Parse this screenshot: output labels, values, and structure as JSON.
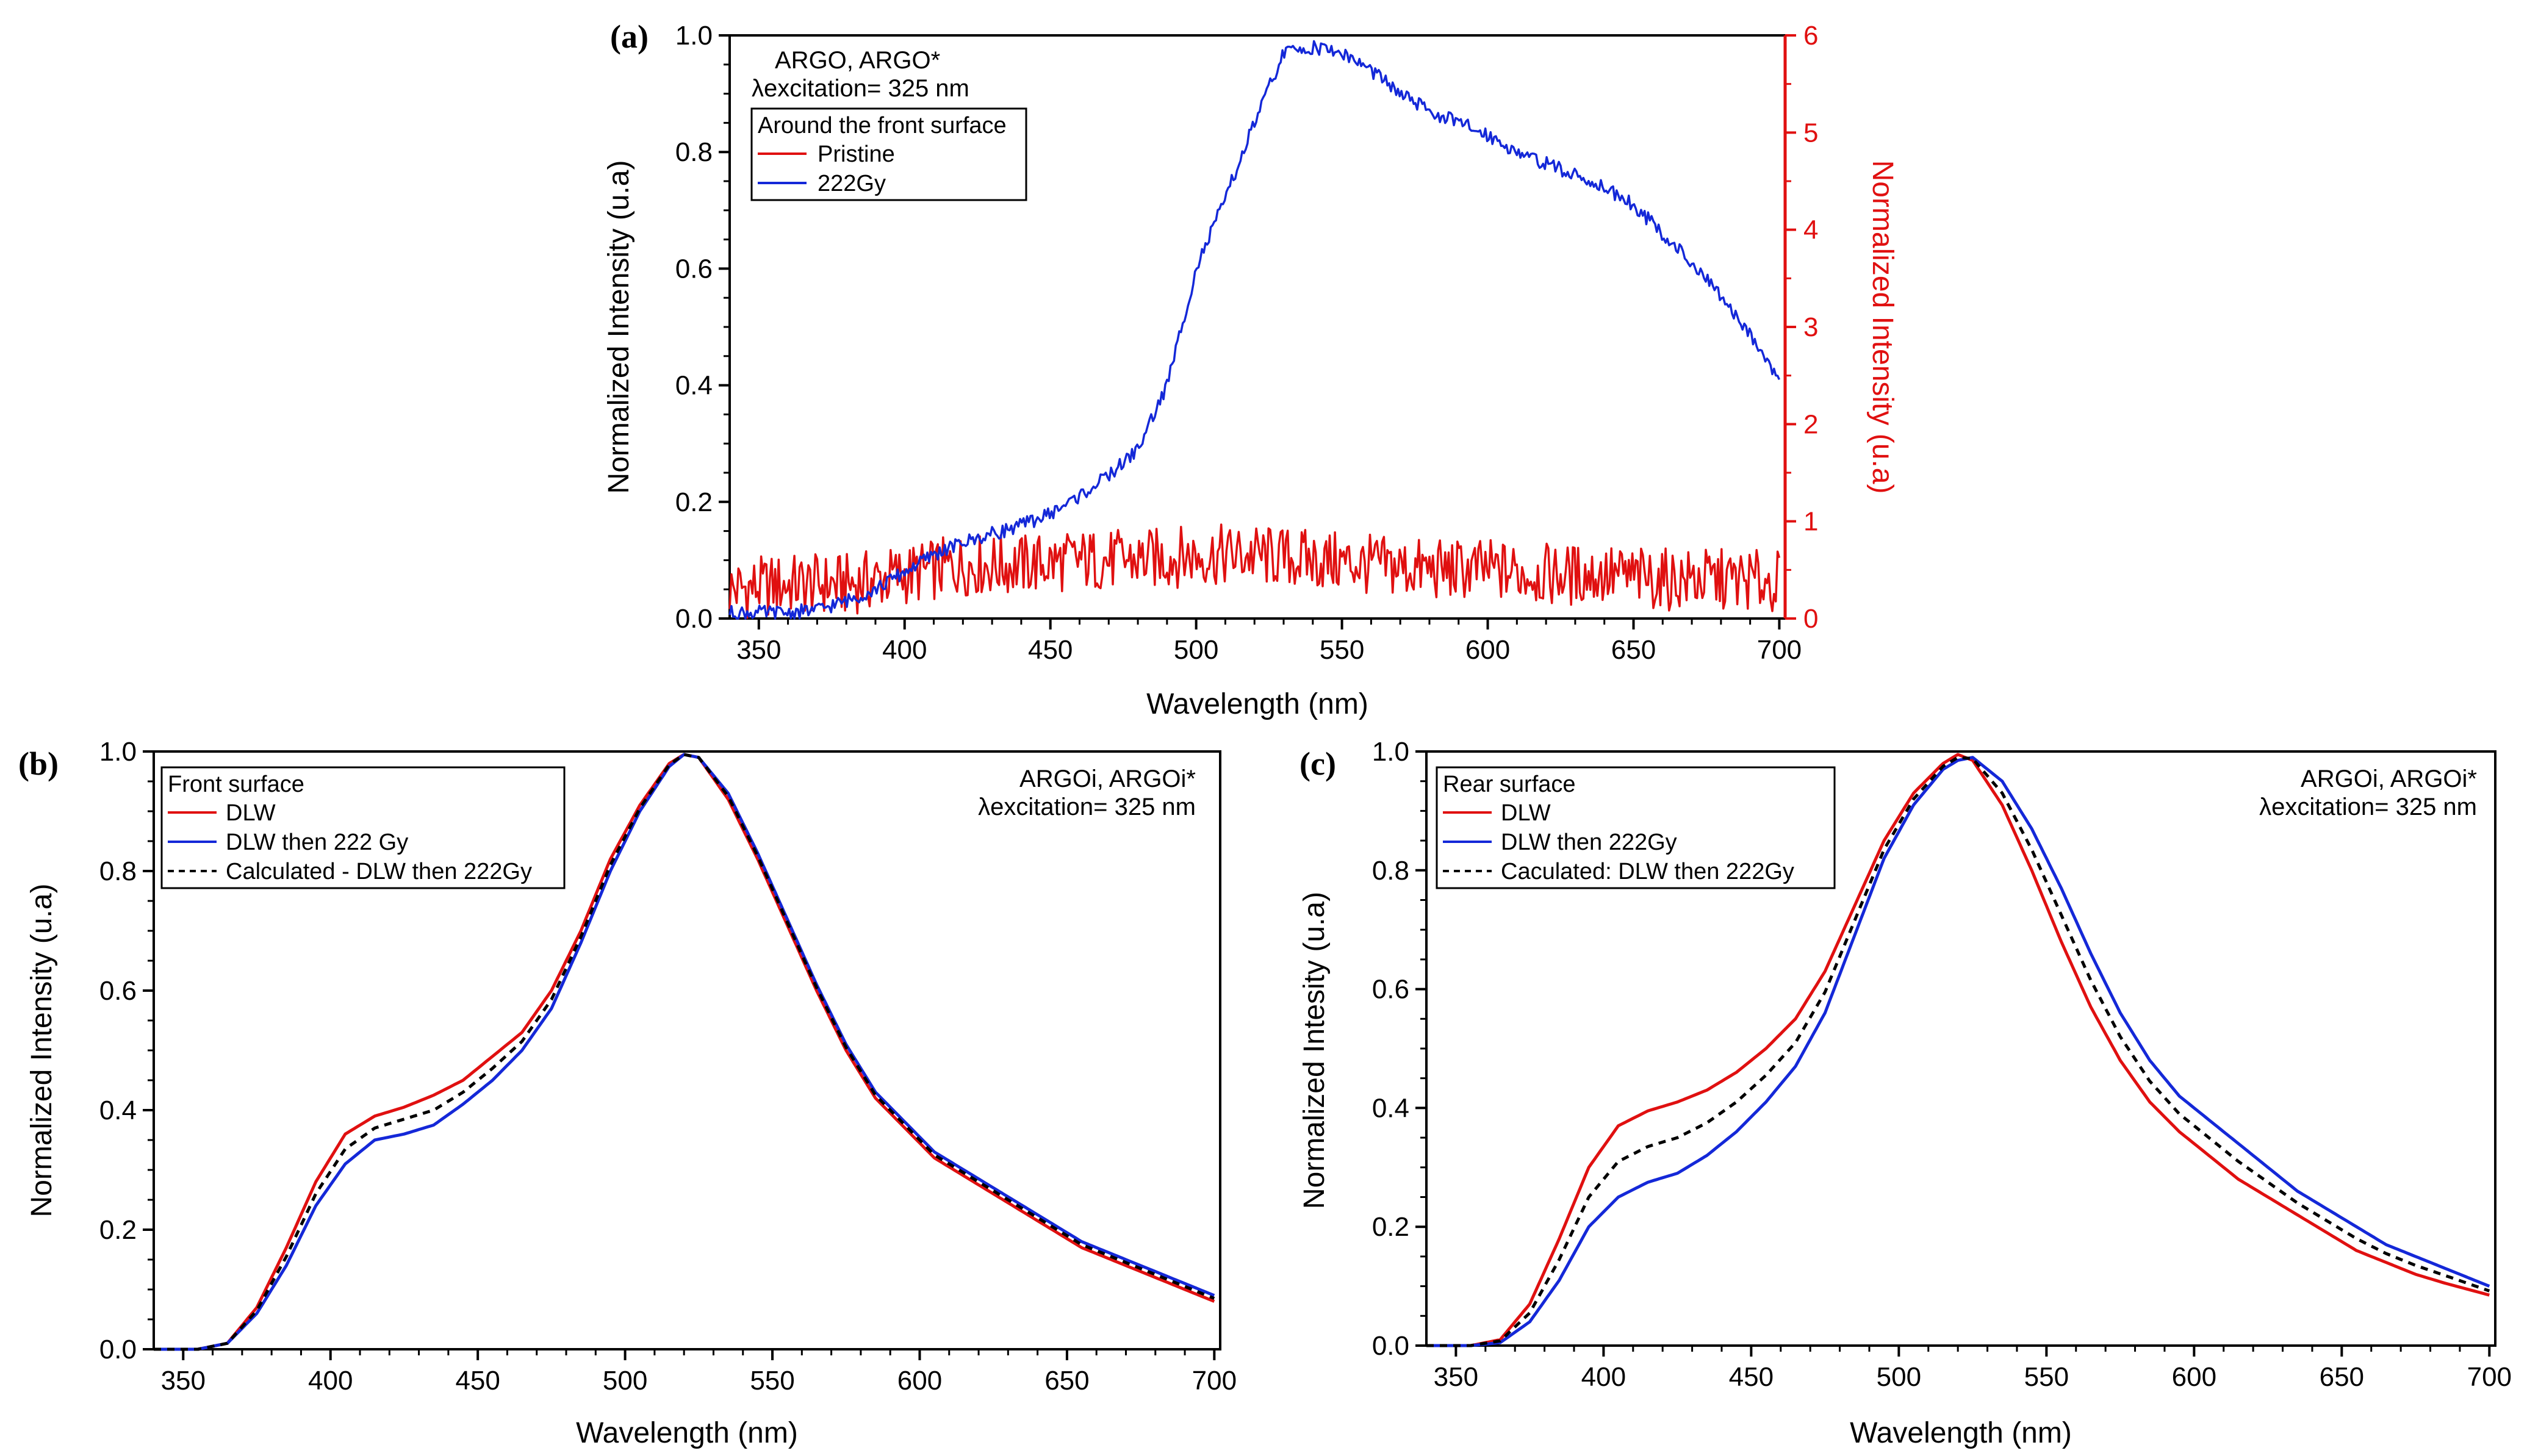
{
  "colors": {
    "red": "#e01010",
    "blue": "#1428d8",
    "black": "#000000"
  },
  "chart_data": [
    {
      "id": "a",
      "type": "line",
      "panel_label": "(a)",
      "xlabel": "Wavelength (nm)",
      "ylabel": "Normalized Intensity (u.a)",
      "y2label": "Normalized Intensity (u.a)",
      "xlim": [
        340,
        702
      ],
      "ylim": [
        0,
        1.0
      ],
      "y2lim": [
        0,
        6
      ],
      "xticks": [
        350,
        400,
        450,
        500,
        550,
        600,
        650,
        700
      ],
      "xtick_labels": [
        "350",
        "400",
        "450",
        "500",
        "550",
        "600",
        "650",
        "700"
      ],
      "yticks": [
        0,
        0.2,
        0.4,
        0.6,
        0.8,
        1.0
      ],
      "ytick_labels": [
        "0.0",
        "0.2",
        "0.4",
        "0.6",
        "0.8",
        "1.0"
      ],
      "y2ticks": [
        0,
        1,
        2,
        3,
        4,
        5,
        6
      ],
      "y2tick_labels": [
        "0",
        "1",
        "2",
        "3",
        "4",
        "5",
        "6"
      ],
      "annotation": [
        "ARGO, ARGO*",
        "λexcitation= 325 nm"
      ],
      "legend_title": "Around the front surface",
      "legend_position": "top-left",
      "series": [
        {
          "name": "Pristine",
          "color": "red",
          "axis": "right",
          "x": [
            340,
            360,
            380,
            400,
            420,
            440,
            460,
            480,
            500,
            520,
            540,
            560,
            580,
            600,
            620,
            640,
            660,
            680,
            700
          ],
          "y": [
            0.3,
            0.35,
            0.35,
            0.45,
            0.55,
            0.55,
            0.6,
            0.6,
            0.65,
            0.65,
            0.6,
            0.55,
            0.5,
            0.5,
            0.45,
            0.45,
            0.4,
            0.4,
            0.38
          ]
        },
        {
          "name": "222Gy",
          "color": "blue",
          "axis": "left",
          "x": [
            340,
            360,
            370,
            380,
            390,
            400,
            410,
            420,
            430,
            440,
            450,
            460,
            470,
            480,
            490,
            500,
            510,
            520,
            530,
            540,
            550,
            560,
            570,
            580,
            590,
            600,
            610,
            620,
            630,
            640,
            650,
            660,
            670,
            680,
            690,
            700
          ],
          "y": [
            0.01,
            0.01,
            0.015,
            0.03,
            0.05,
            0.08,
            0.11,
            0.13,
            0.145,
            0.16,
            0.18,
            0.21,
            0.245,
            0.29,
            0.4,
            0.6,
            0.72,
            0.85,
            0.97,
            0.98,
            0.97,
            0.94,
            0.9,
            0.87,
            0.85,
            0.83,
            0.8,
            0.78,
            0.76,
            0.74,
            0.71,
            0.66,
            0.61,
            0.55,
            0.49,
            0.41
          ]
        }
      ]
    },
    {
      "id": "b",
      "type": "line",
      "panel_label": "(b)",
      "xlabel": "Wavelength (nm)",
      "ylabel": "Normalized Intensity (u.a)",
      "xlim": [
        340,
        702
      ],
      "ylim": [
        0,
        1.0
      ],
      "xticks": [
        350,
        400,
        450,
        500,
        550,
        600,
        650,
        700
      ],
      "xtick_labels": [
        "350",
        "400",
        "450",
        "500",
        "550",
        "600",
        "650",
        "700"
      ],
      "yticks": [
        0,
        0.2,
        0.4,
        0.6,
        0.8,
        1.0
      ],
      "ytick_labels": [
        "0.0",
        "0.2",
        "0.4",
        "0.6",
        "0.8",
        "1.0"
      ],
      "annotation": [
        "ARGOi, ARGOi*",
        "λexcitation= 325 nm"
      ],
      "legend_title": "Front surface",
      "legend_position": "top-left",
      "series": [
        {
          "name": "DLW",
          "color": "red",
          "dash": false,
          "x": [
            340,
            355,
            365,
            375,
            385,
            395,
            405,
            415,
            425,
            435,
            445,
            455,
            465,
            475,
            485,
            495,
            505,
            515,
            520,
            525,
            535,
            545,
            555,
            565,
            575,
            585,
            595,
            605,
            615,
            625,
            635,
            645,
            655,
            665,
            675,
            685,
            700
          ],
          "y": [
            0,
            0,
            0.01,
            0.07,
            0.17,
            0.28,
            0.36,
            0.39,
            0.405,
            0.425,
            0.45,
            0.49,
            0.53,
            0.6,
            0.7,
            0.82,
            0.91,
            0.98,
            0.995,
            0.99,
            0.92,
            0.82,
            0.71,
            0.6,
            0.5,
            0.42,
            0.37,
            0.32,
            0.29,
            0.26,
            0.23,
            0.2,
            0.17,
            0.15,
            0.13,
            0.11,
            0.08
          ]
        },
        {
          "name": "DLW then 222 Gy",
          "color": "blue",
          "dash": false,
          "x": [
            340,
            355,
            365,
            375,
            385,
            395,
            405,
            415,
            425,
            435,
            445,
            455,
            465,
            475,
            485,
            495,
            505,
            515,
            520,
            525,
            535,
            545,
            555,
            565,
            575,
            585,
            595,
            605,
            615,
            625,
            635,
            645,
            655,
            665,
            675,
            685,
            700
          ],
          "y": [
            0,
            0,
            0.01,
            0.06,
            0.14,
            0.24,
            0.31,
            0.35,
            0.36,
            0.375,
            0.41,
            0.45,
            0.5,
            0.57,
            0.68,
            0.8,
            0.9,
            0.975,
            0.995,
            0.99,
            0.93,
            0.83,
            0.72,
            0.61,
            0.51,
            0.43,
            0.38,
            0.33,
            0.3,
            0.27,
            0.24,
            0.21,
            0.18,
            0.16,
            0.14,
            0.12,
            0.09
          ]
        },
        {
          "name": "Calculated - DLW then 222Gy",
          "color": "black",
          "dash": true,
          "x": [
            340,
            355,
            365,
            375,
            385,
            395,
            405,
            415,
            425,
            435,
            445,
            455,
            465,
            475,
            485,
            495,
            505,
            515,
            520,
            525,
            535,
            545,
            555,
            565,
            575,
            585,
            595,
            605,
            615,
            625,
            635,
            645,
            655,
            665,
            675,
            685,
            700
          ],
          "y": [
            0,
            0,
            0.01,
            0.065,
            0.155,
            0.26,
            0.335,
            0.37,
            0.385,
            0.4,
            0.43,
            0.47,
            0.515,
            0.585,
            0.69,
            0.81,
            0.905,
            0.978,
            0.995,
            0.99,
            0.925,
            0.825,
            0.715,
            0.605,
            0.505,
            0.425,
            0.375,
            0.325,
            0.295,
            0.265,
            0.235,
            0.205,
            0.175,
            0.155,
            0.135,
            0.115,
            0.085
          ]
        }
      ]
    },
    {
      "id": "c",
      "type": "line",
      "panel_label": "(c)",
      "xlabel": "Wavelength (nm)",
      "ylabel": "Normalized Intesity (u.a)",
      "xlim": [
        340,
        702
      ],
      "ylim": [
        0,
        1.0
      ],
      "xticks": [
        350,
        400,
        450,
        500,
        550,
        600,
        650,
        700
      ],
      "xtick_labels": [
        "350",
        "400",
        "450",
        "500",
        "550",
        "600",
        "650",
        "700"
      ],
      "yticks": [
        0,
        0.2,
        0.4,
        0.6,
        0.8,
        1.0
      ],
      "ytick_labels": [
        "0.0",
        "0.2",
        "0.4",
        "0.6",
        "0.8",
        "1.0"
      ],
      "annotation": [
        "ARGOi, ARGOi*",
        "λexcitation= 325 nm"
      ],
      "legend_title": "Rear surface",
      "legend_position": "top-left",
      "series": [
        {
          "name": "DLW",
          "color": "red",
          "dash": false,
          "x": [
            340,
            355,
            365,
            375,
            385,
            395,
            405,
            415,
            425,
            435,
            445,
            455,
            465,
            475,
            485,
            495,
            505,
            515,
            520,
            525,
            535,
            545,
            555,
            565,
            575,
            585,
            595,
            605,
            615,
            625,
            635,
            645,
            655,
            665,
            675,
            685,
            700
          ],
          "y": [
            0,
            0,
            0.01,
            0.07,
            0.18,
            0.3,
            0.37,
            0.395,
            0.41,
            0.43,
            0.46,
            0.5,
            0.55,
            0.63,
            0.74,
            0.85,
            0.93,
            0.98,
            0.995,
            0.985,
            0.91,
            0.8,
            0.68,
            0.57,
            0.48,
            0.41,
            0.36,
            0.32,
            0.28,
            0.25,
            0.22,
            0.19,
            0.16,
            0.14,
            0.12,
            0.105,
            0.085
          ]
        },
        {
          "name": "DLW then 222Gy",
          "color": "blue",
          "dash": false,
          "x": [
            340,
            355,
            365,
            375,
            385,
            395,
            405,
            415,
            425,
            435,
            445,
            455,
            465,
            475,
            485,
            495,
            505,
            515,
            520,
            525,
            535,
            545,
            555,
            565,
            575,
            585,
            595,
            605,
            615,
            625,
            635,
            645,
            655,
            665,
            675,
            685,
            700
          ],
          "y": [
            0,
            0,
            0.005,
            0.04,
            0.11,
            0.2,
            0.25,
            0.275,
            0.29,
            0.32,
            0.36,
            0.41,
            0.47,
            0.56,
            0.69,
            0.82,
            0.91,
            0.97,
            0.985,
            0.99,
            0.95,
            0.87,
            0.77,
            0.66,
            0.56,
            0.48,
            0.42,
            0.38,
            0.34,
            0.3,
            0.26,
            0.23,
            0.2,
            0.17,
            0.15,
            0.13,
            0.1
          ]
        },
        {
          "name": "Caculated: DLW then 222Gy",
          "color": "black",
          "dash": true,
          "x": [
            340,
            355,
            365,
            375,
            385,
            395,
            405,
            415,
            425,
            435,
            445,
            455,
            465,
            475,
            485,
            495,
            505,
            515,
            520,
            525,
            535,
            545,
            555,
            565,
            575,
            585,
            595,
            605,
            615,
            625,
            635,
            645,
            655,
            665,
            675,
            685,
            700
          ],
          "y": [
            0,
            0,
            0.008,
            0.055,
            0.145,
            0.25,
            0.31,
            0.335,
            0.35,
            0.375,
            0.41,
            0.455,
            0.51,
            0.595,
            0.715,
            0.835,
            0.92,
            0.975,
            0.99,
            0.988,
            0.93,
            0.835,
            0.725,
            0.615,
            0.52,
            0.445,
            0.39,
            0.35,
            0.31,
            0.275,
            0.24,
            0.21,
            0.18,
            0.155,
            0.135,
            0.118,
            0.092
          ]
        }
      ]
    }
  ]
}
